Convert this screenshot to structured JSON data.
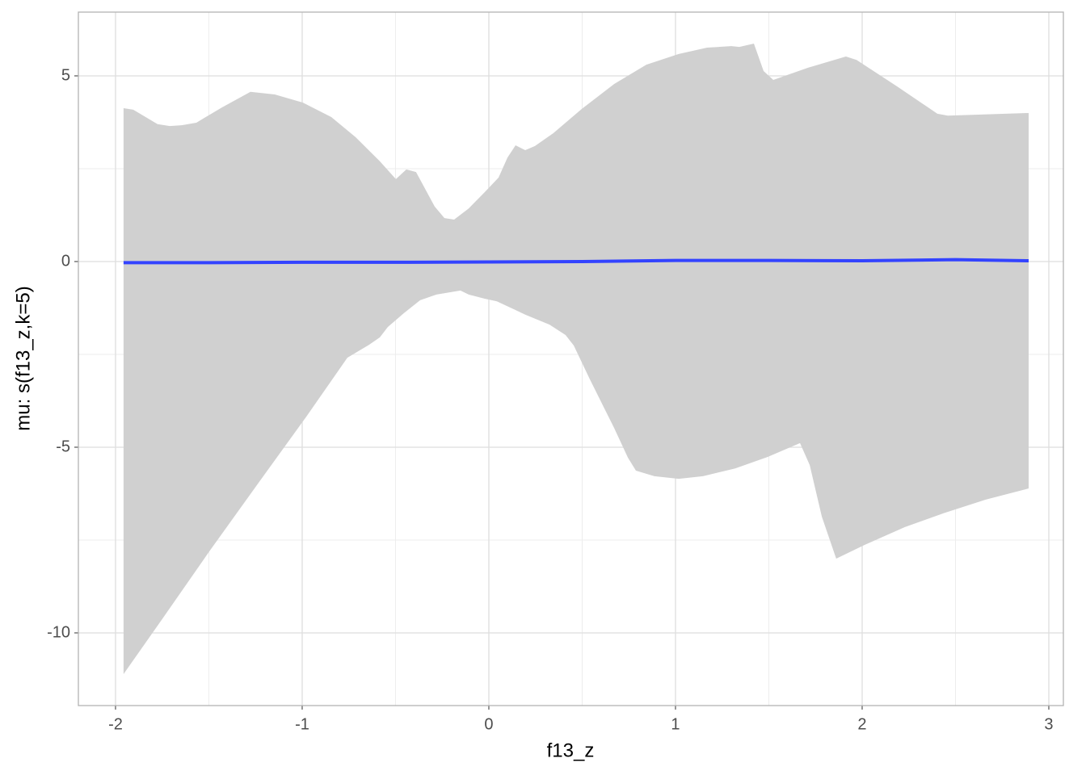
{
  "chart_data": {
    "type": "ribbon-line",
    "x_label": "f13_z",
    "y_label": "mu: s(f13_z,k=5)",
    "xlim": [
      -2.199,
      3.078
    ],
    "ylim": [
      -11.957,
      6.717
    ],
    "xticks": [
      -2,
      -1,
      0,
      1,
      2,
      3
    ],
    "yticks": [
      -10,
      -5,
      0,
      5
    ],
    "minor_xticks": [
      -1.5,
      -0.5,
      0.5,
      1.5,
      2.5
    ],
    "minor_yticks": [
      -7.5,
      -2.5,
      2.5
    ],
    "grid": true,
    "ribbon_color": "#d0d0d0",
    "line_color": "#3343ff",
    "ribbon_upper": {
      "x": [
        -1.957,
        -1.905,
        -1.775,
        -1.71,
        -1.645,
        -1.567,
        -1.43,
        -1.277,
        -1.147,
        -0.996,
        -0.844,
        -0.714,
        -0.584,
        -0.498,
        -0.442,
        -0.39,
        -0.29,
        -0.238,
        -0.186,
        -0.108,
        -0.022,
        0.052,
        0.1,
        0.143,
        0.195,
        0.247,
        0.346,
        0.498,
        0.671,
        0.844,
        1.017,
        1.169,
        1.299,
        1.342,
        1.42,
        1.472,
        1.524,
        1.71,
        1.913,
        1.97,
        2.186,
        2.403,
        2.459,
        2.892
      ],
      "y": [
        4.13,
        4.09,
        3.7,
        3.65,
        3.67,
        3.74,
        4.15,
        4.57,
        4.5,
        4.28,
        3.89,
        3.35,
        2.7,
        2.22,
        2.48,
        2.41,
        1.48,
        1.17,
        1.13,
        1.43,
        1.87,
        2.26,
        2.8,
        3.13,
        3.0,
        3.11,
        3.46,
        4.11,
        4.78,
        5.3,
        5.59,
        5.76,
        5.8,
        5.78,
        5.87,
        5.13,
        4.89,
        5.22,
        5.52,
        5.43,
        4.72,
        3.98,
        3.93,
        4.0
      ]
    },
    "ribbon_lower": {
      "x": [
        -1.957,
        -1.753,
        -1.494,
        -1.234,
        -0.974,
        -0.758,
        -0.641,
        -0.584,
        -0.541,
        -0.455,
        -0.368,
        -0.281,
        -0.152,
        -0.108,
        -0.022,
        0.043,
        0.195,
        0.325,
        0.411,
        0.455,
        0.541,
        0.671,
        0.745,
        0.788,
        0.887,
        1.017,
        1.147,
        1.32,
        1.494,
        1.667,
        1.719,
        1.784,
        1.861,
        2.013,
        2.229,
        2.446,
        2.662,
        2.892
      ],
      "y": [
        -11.11,
        -9.65,
        -7.78,
        -5.96,
        -4.15,
        -2.59,
        -2.24,
        -2.04,
        -1.76,
        -1.39,
        -1.04,
        -0.89,
        -0.78,
        -0.89,
        -1.0,
        -1.07,
        -1.43,
        -1.7,
        -1.98,
        -2.26,
        -3.17,
        -4.48,
        -5.28,
        -5.63,
        -5.78,
        -5.85,
        -5.78,
        -5.57,
        -5.26,
        -4.89,
        -5.48,
        -6.87,
        -8.0,
        -7.63,
        -7.15,
        -6.76,
        -6.41,
        -6.11
      ]
    },
    "line": {
      "x": [
        -1.957,
        -1.5,
        -1.0,
        -0.5,
        0.0,
        0.5,
        1.0,
        1.5,
        2.0,
        2.5,
        2.892
      ],
      "y": [
        -0.03,
        -0.03,
        -0.02,
        -0.02,
        -0.01,
        0.0,
        0.03,
        0.03,
        0.02,
        0.05,
        0.02
      ]
    }
  }
}
